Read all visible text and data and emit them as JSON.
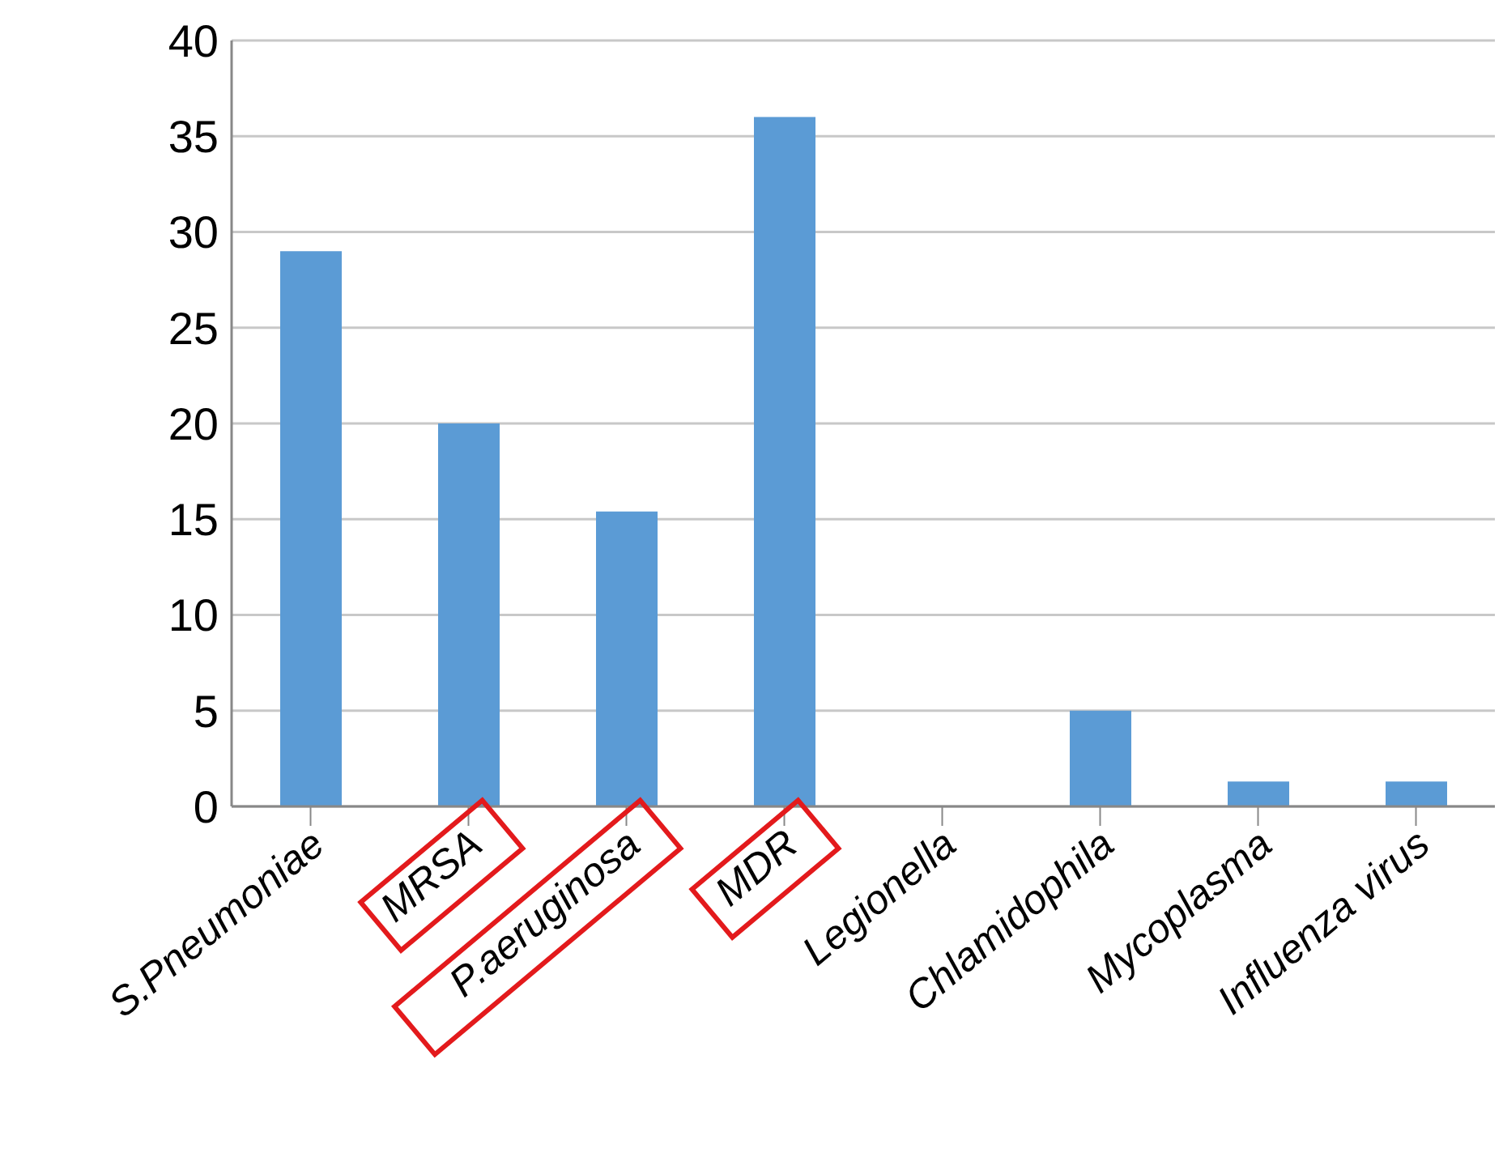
{
  "chart_data": {
    "type": "bar",
    "categories": [
      "S.Pneumoniae",
      "MRSA",
      "P.aeruginosa",
      "MDR",
      "Legionella",
      "Chlamidophila",
      "Mycoplasma",
      "Influenza virus"
    ],
    "values": [
      29,
      20,
      15.4,
      36,
      0,
      5,
      1.3,
      1.3
    ],
    "color": "#5b9bd5",
    "ylim": [
      0,
      40
    ],
    "yticks": [
      0,
      5,
      10,
      15,
      20,
      25,
      30,
      35,
      40
    ],
    "grid": "y"
  }
}
